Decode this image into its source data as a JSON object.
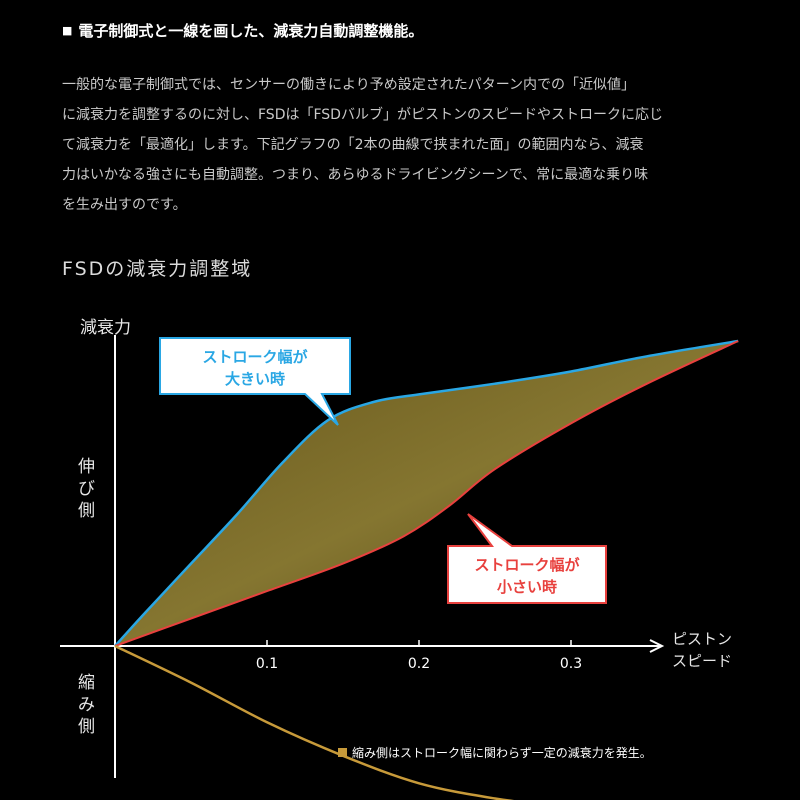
{
  "heading": {
    "bullet": "■",
    "text": "電子制御式と一線を画した、減衰力自動調整機能。"
  },
  "paragraph": [
    "一般的な電子制御式では、センサーの働きにより予め設定されたパターン内での「近似値」",
    "に減衰力を調整するのに対し、FSDは「FSDバルブ」がピストンのスピードやストロークに応じ",
    "て減衰力を「最適化」します。下記グラフの「2本の曲線で挟まれた面」の範囲内なら、減衰",
    "力はいかなる強さにも自動調整。つまり、あらゆるドライビングシーンで、常に最適な乗り味",
    "を生み出すのです。"
  ],
  "chart_title": "FSDの減衰力調整域",
  "colors": {
    "large_stroke": "#2aa7e4",
    "small_stroke": "#e8413e",
    "compression": "#c79a3a",
    "fill": "#8a7a2e",
    "axis": "#ffffff"
  },
  "chart_data": {
    "type": "line",
    "ylabel": "減衰力",
    "xlabel": [
      "ピストン",
      "スピード"
    ],
    "extension_side_label": [
      "伸",
      "び",
      "側"
    ],
    "compression_side_label": [
      "縮",
      "み",
      "側"
    ],
    "x_ticks": [
      0.1,
      0.2,
      0.3
    ],
    "x_tick_labels": [
      "0.1",
      "0.2",
      "0.3"
    ],
    "series": [
      {
        "name": [
          "ストローク幅が",
          "大きい時"
        ],
        "x": [
          0,
          0.02,
          0.05,
          0.08,
          0.11,
          0.14,
          0.17,
          0.2,
          0.25,
          0.3,
          0.35,
          0.41
        ],
        "y": [
          0,
          0.11,
          0.27,
          0.43,
          0.6,
          0.74,
          0.8,
          0.825,
          0.86,
          0.9,
          0.95,
          1.0
        ]
      },
      {
        "name": [
          "ストローク幅が",
          "小さい時"
        ],
        "x": [
          0,
          0.05,
          0.1,
          0.15,
          0.19,
          0.22,
          0.25,
          0.3,
          0.35,
          0.41
        ],
        "y": [
          0,
          0.09,
          0.18,
          0.27,
          0.36,
          0.46,
          0.58,
          0.73,
          0.86,
          1.0
        ]
      },
      {
        "name": "縮み側はストローク幅に関わらず一定の減衰力を発生。",
        "x": [
          0,
          0.05,
          0.1,
          0.15,
          0.2,
          0.25,
          0.3,
          0.35,
          0.41
        ],
        "y": [
          0,
          -0.12,
          -0.25,
          -0.36,
          -0.45,
          -0.5,
          -0.53,
          -0.55,
          -0.56
        ]
      }
    ],
    "legend_text": "縮み側はストローク幅に関わらず一定の減衰力を発生。",
    "grid": false
  }
}
